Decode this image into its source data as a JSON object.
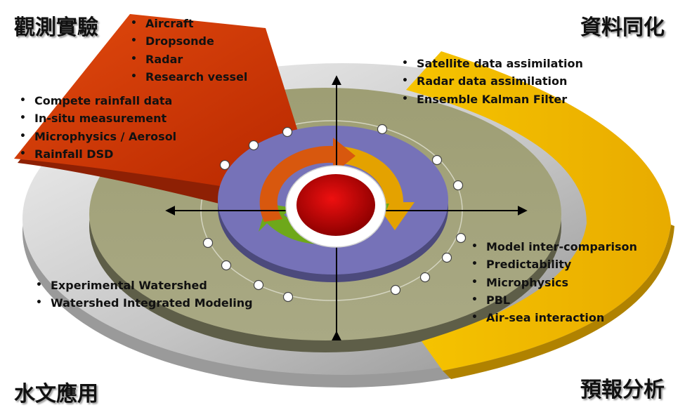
{
  "corners": {
    "observation": "觀測實驗",
    "assimilation": "資料同化",
    "hydrology": "水文應用",
    "forecast": "預報分析"
  },
  "lists": {
    "platforms": [
      "Aircraft",
      "Dropsonde",
      "Radar",
      "Research vessel"
    ],
    "measurements": [
      "Compete rainfall data",
      "In-situ measurement",
      "Microphysics / Aerosol",
      "Rainfall DSD"
    ],
    "assimilation": [
      "Satellite data assimilation",
      "Radar data assimilation",
      "Ensemble Kalman Filter"
    ],
    "forecast": [
      "Model inter-comparison",
      "Predictability",
      "Microphysics",
      "PBL",
      "Air-sea interaction"
    ],
    "hydrology": [
      "Experimental Watershed",
      "Watershed Integrated Modeling"
    ]
  },
  "colors": {
    "observation_sector": "#d03a06",
    "assimilation_sector": "#f0b800",
    "outer_disk": "#c8c8c8",
    "middle_disk": "#a4a47a",
    "inner_ring": "#7470b4",
    "center_core": "#c00000",
    "arrow_orange": "#e06010",
    "arrow_yellow": "#e8a800",
    "arrow_green": "#6aa418"
  }
}
